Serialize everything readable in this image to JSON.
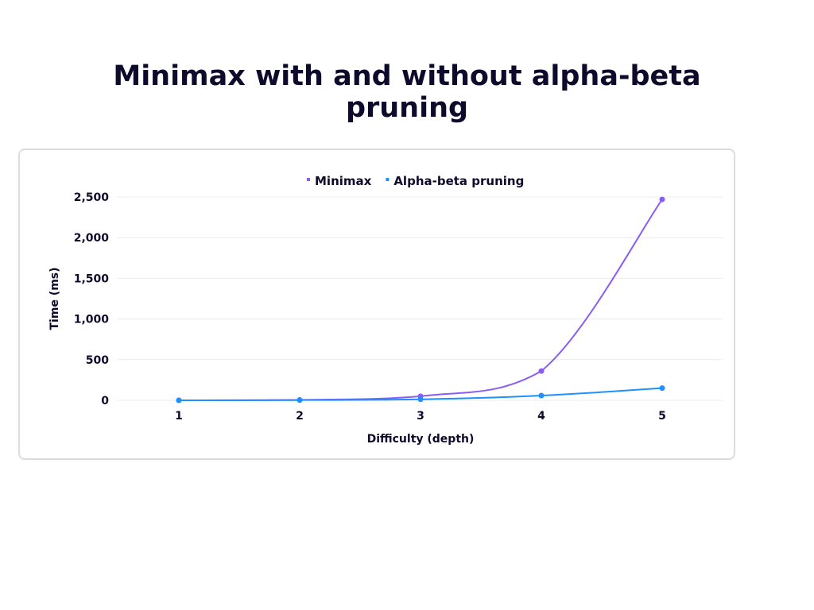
{
  "page": {
    "title": "Minimax with and without alpha-beta pruning"
  },
  "chart_data": {
    "type": "line",
    "title": "Minimax with and without alpha-beta pruning",
    "xlabel": "Difficulty (depth)",
    "ylabel": "Time (ms)",
    "x": [
      1,
      2,
      3,
      4,
      5
    ],
    "x_tick_labels": [
      "1",
      "2",
      "3",
      "4",
      "5"
    ],
    "ylim": [
      0,
      2500
    ],
    "y_ticks": [
      0,
      500,
      1000,
      1500,
      2000,
      2500
    ],
    "y_tick_labels": [
      "0",
      "500",
      "1,000",
      "1,500",
      "2,000",
      "2,500"
    ],
    "grid": true,
    "legend_position": "top-center",
    "series": [
      {
        "name": "Minimax",
        "color": "#8b5cf6",
        "values": [
          0,
          5,
          50,
          360,
          2470
        ]
      },
      {
        "name": "Alpha-beta pruning",
        "color": "#1e90ff",
        "values": [
          0,
          3,
          12,
          58,
          150
        ]
      }
    ]
  }
}
